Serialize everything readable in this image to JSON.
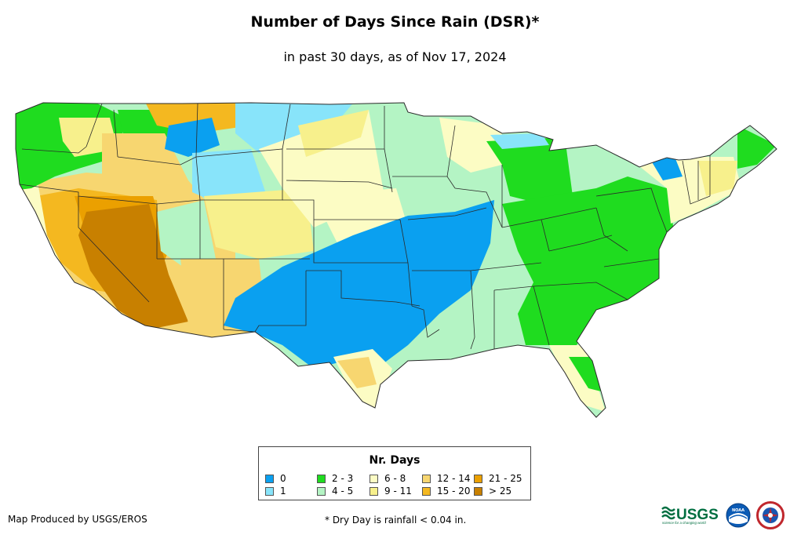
{
  "header": {
    "title": "Number of Days Since Rain (DSR)*",
    "subtitle": "in past 30 days, as of Nov 17, 2024"
  },
  "legend": {
    "title": "Nr. Days",
    "items": [
      {
        "label": "0",
        "color": "#0aa0f0"
      },
      {
        "label": "1",
        "color": "#88e4fa"
      },
      {
        "label": "2 - 3",
        "color": "#1fdc1f"
      },
      {
        "label": "4 - 5",
        "color": "#b4f4c4"
      },
      {
        "label": "6 - 8",
        "color": "#fcfcc4"
      },
      {
        "label": "9 - 11",
        "color": "#f7f08c"
      },
      {
        "label": "12 - 14",
        "color": "#f7d670"
      },
      {
        "label": "15 - 20",
        "color": "#f4b820"
      },
      {
        "label": "21 - 25",
        "color": "#eba000"
      },
      {
        "label": "> 25",
        "color": "#c88000"
      }
    ]
  },
  "footer": {
    "credit": "Map Produced by USGS/EROS",
    "footnote": "* Dry Day is rainfall < 0.04 in.",
    "usgs_logo_text": "USGS",
    "usgs_tagline": "science for a changing world",
    "noaa_logo_text": "NOAA"
  },
  "icons": [
    "usgs-logo",
    "noaa-logo",
    "nws-logo"
  ]
}
